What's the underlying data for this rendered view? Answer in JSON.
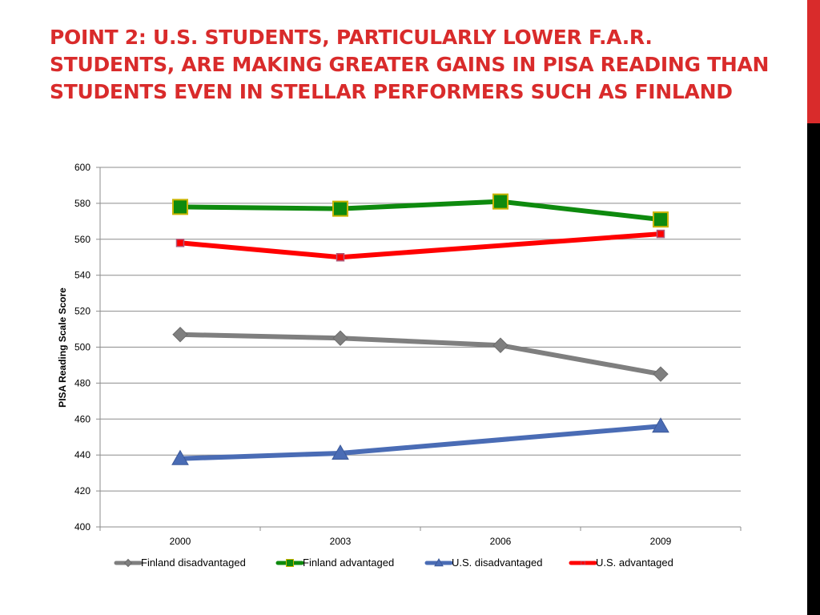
{
  "slide": {
    "title": "POINT 2: U.S. STUDENTS, PARTICULARLY LOWER F.A.R. STUDENTS, ARE MAKING GREATER GAINS IN PISA READING THAN STUDENTS EVEN IN STELLAR PERFORMERS SUCH AS FINLAND",
    "title_color": "#d92b2b"
  },
  "chart_data": {
    "type": "line",
    "title": "",
    "xlabel": "",
    "ylabel": "PISA Reading Scale Score",
    "categories": [
      "2000",
      "2003",
      "2006",
      "2009"
    ],
    "ylim": [
      400,
      600
    ],
    "yticks": [
      400,
      420,
      440,
      460,
      480,
      500,
      520,
      540,
      560,
      580,
      600
    ],
    "grid": true,
    "legend_position": "bottom",
    "series": [
      {
        "name": "Finland disadvantaged",
        "values": [
          507,
          505,
          501,
          485
        ],
        "color": "#7f7f7f",
        "marker": "diamond"
      },
      {
        "name": "Finland advantaged",
        "values": [
          578,
          577,
          581,
          571
        ],
        "color": "#0e8a0e",
        "marker": "square-large"
      },
      {
        "name": "U.S. disadvantaged",
        "values": [
          438,
          441,
          null,
          456
        ],
        "color": "#4a6cb5",
        "marker": "triangle"
      },
      {
        "name": "U.S. advantaged",
        "values": [
          558,
          550,
          null,
          563
        ],
        "color": "#ff0000",
        "marker": "square-small"
      }
    ]
  }
}
